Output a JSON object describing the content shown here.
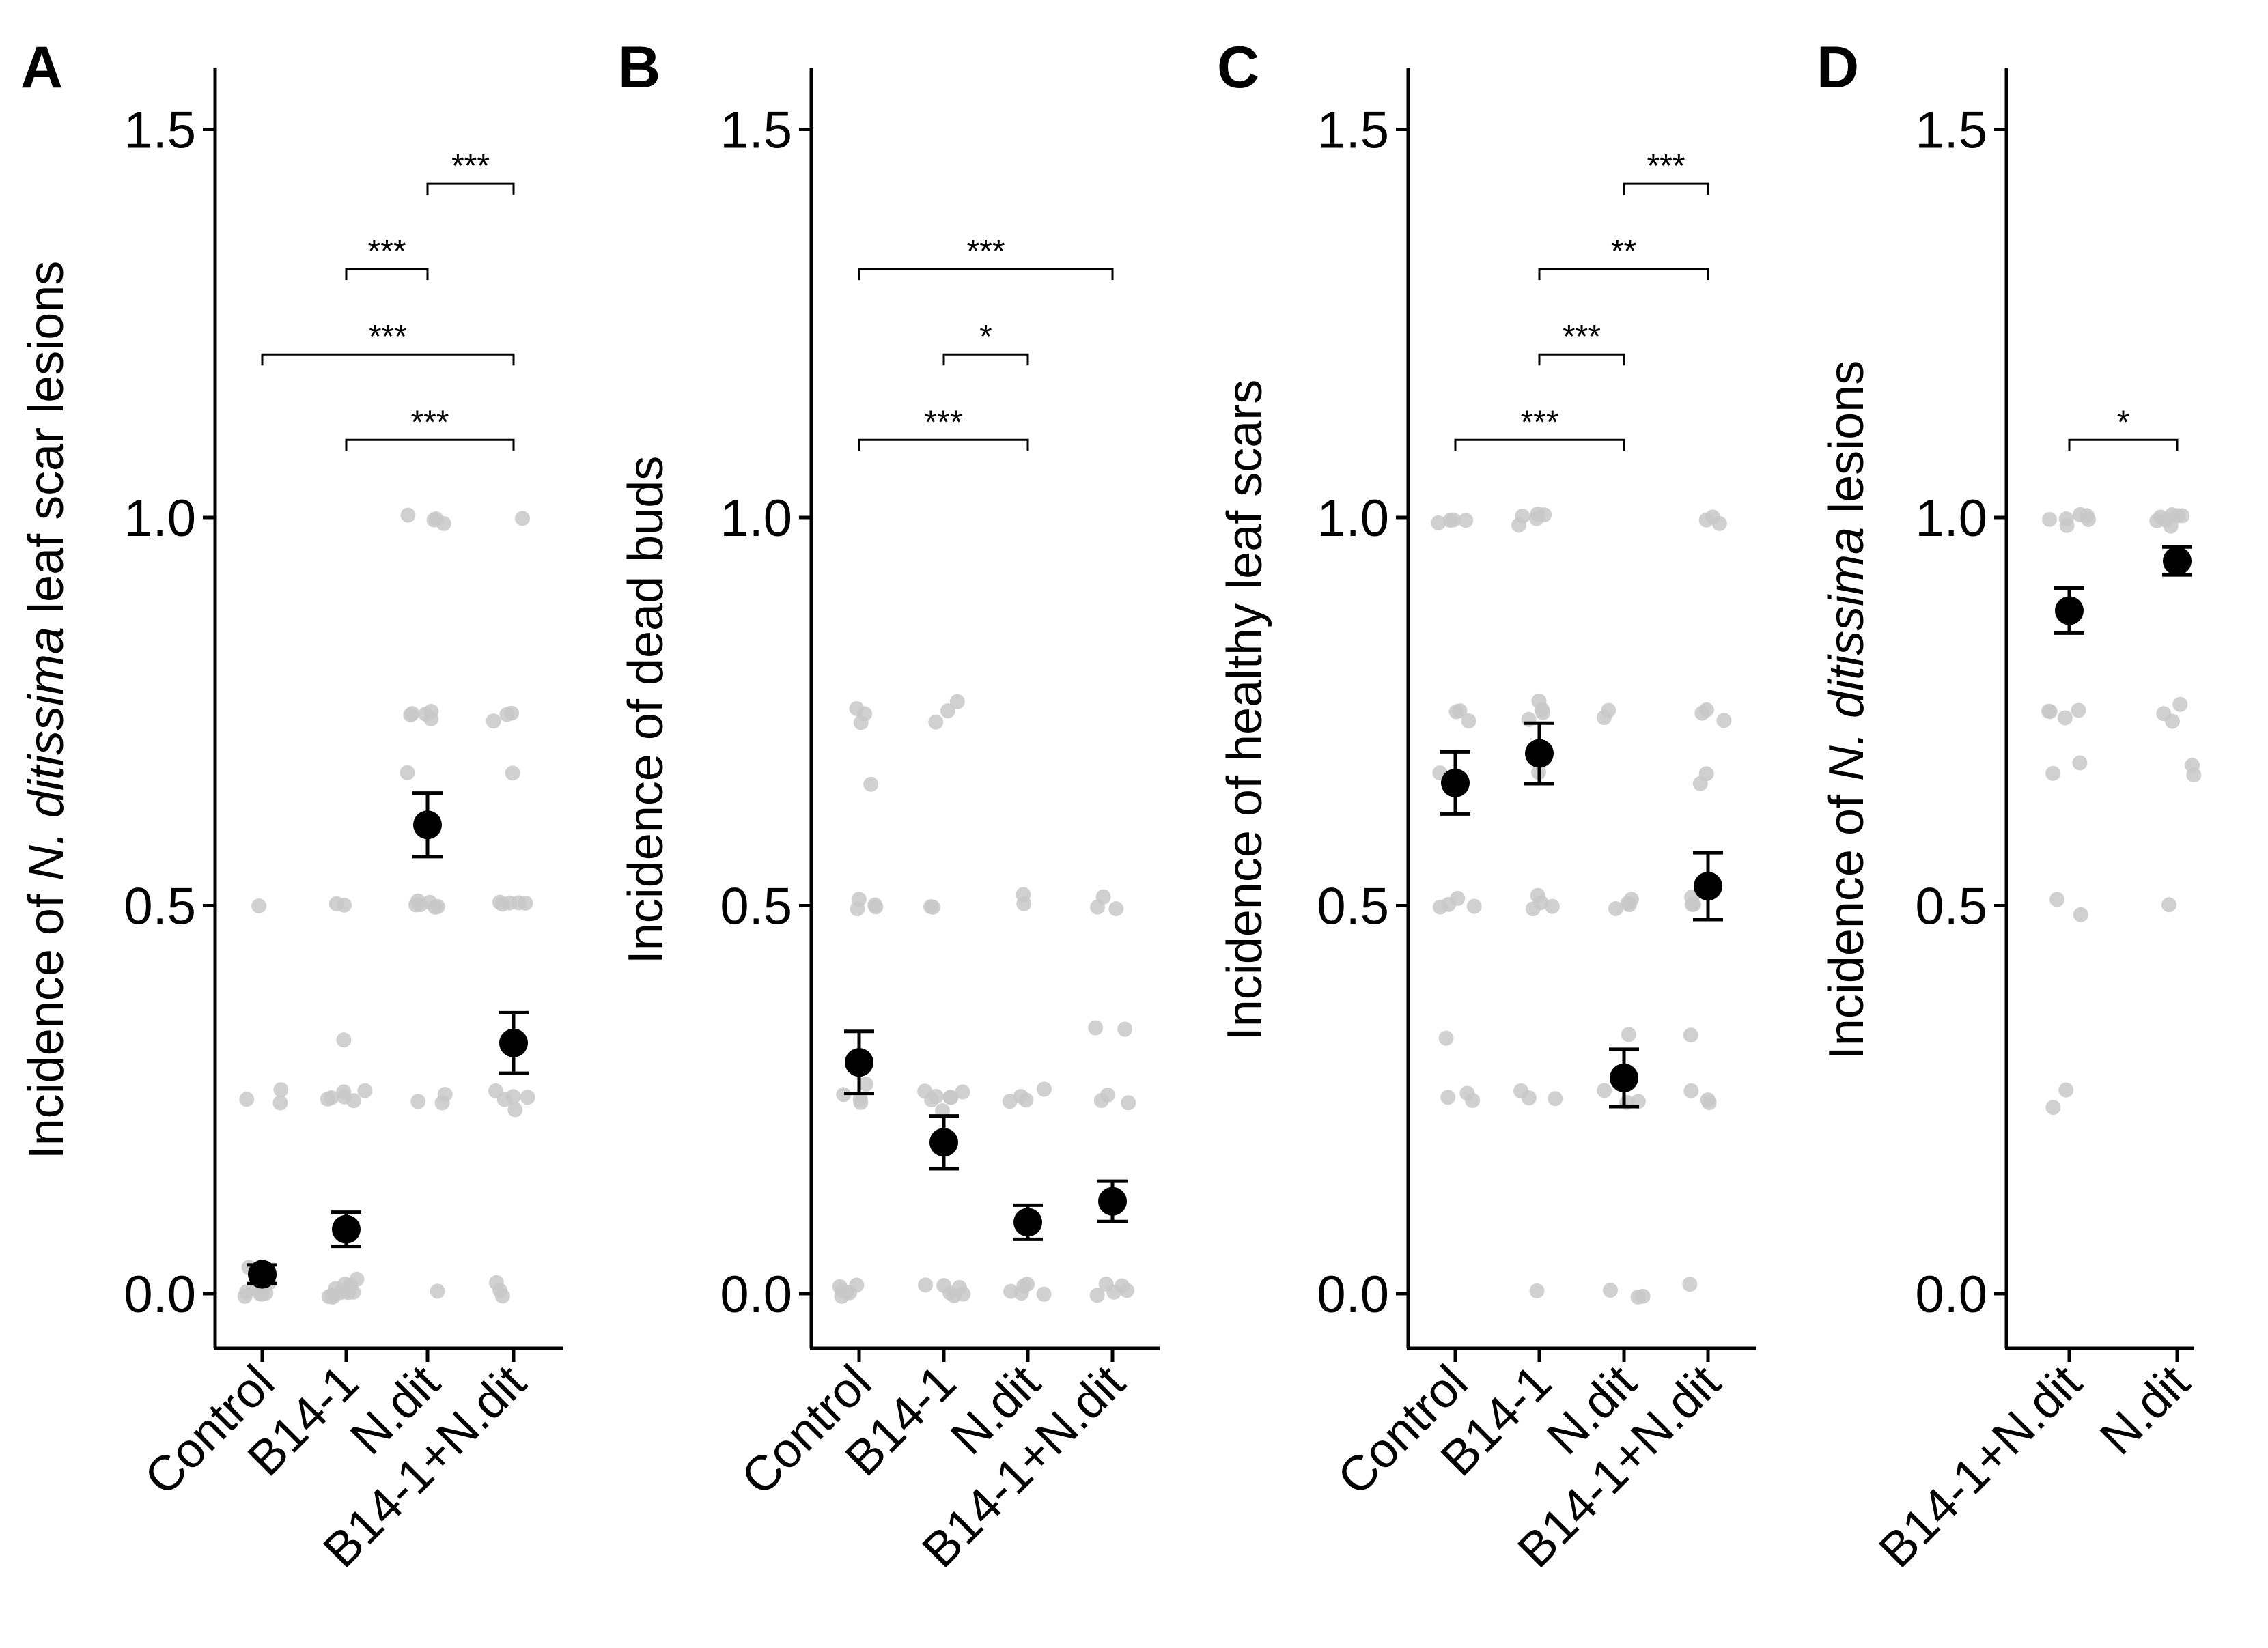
{
  "chart_data": [
    {
      "panel": "A",
      "type": "scatter",
      "ylabel_parts": [
        "Incidence of ",
        "N. ditissima",
        " leaf scar lesions"
      ],
      "ylim": [
        -0.08,
        1.57
      ],
      "yticks": [
        0.0,
        0.5,
        1.0,
        1.5
      ],
      "ytick_labels": [
        "0.0",
        "0.5",
        "1.0",
        "1.5"
      ],
      "categories": [
        "Control",
        "B14-1",
        "N.dit",
        "B14-1+N.dit"
      ],
      "means": [
        0.025,
        0.083,
        0.604,
        0.323
      ],
      "se": [
        0.012,
        0.022,
        0.041,
        0.039
      ],
      "raw_points": [
        [
          0,
          0,
          0,
          0,
          0,
          0.01,
          0.01,
          0.01,
          0.02,
          0.02,
          0.03,
          0.25,
          0.25,
          0.26,
          0.5
        ],
        [
          0,
          0,
          0,
          0,
          0,
          0,
          0,
          0.01,
          0.01,
          0.01,
          0.02,
          0.25,
          0.25,
          0.25,
          0.25,
          0.26,
          0.26,
          0.33,
          0.5,
          0.5
        ],
        [
          0,
          0.25,
          0.25,
          0.26,
          0.5,
          0.5,
          0.5,
          0.5,
          0.5,
          0.51,
          0.67,
          0.74,
          0.75,
          0.75,
          0.75,
          0.75,
          0.99,
          1.0,
          1.0,
          1.0
        ],
        [
          0,
          0,
          0.01,
          0.24,
          0.25,
          0.25,
          0.25,
          0.26,
          0.5,
          0.5,
          0.5,
          0.5,
          0.5,
          0.67,
          0.74,
          0.75,
          0.75,
          1.0
        ]
      ],
      "comparisons": [
        {
          "from": 2,
          "to": 3,
          "y": 1.43,
          "label": "***"
        },
        {
          "from": 1,
          "to": 2,
          "y": 1.32,
          "label": "***"
        },
        {
          "from": 0,
          "to": 3,
          "y": 1.21,
          "label": "***"
        },
        {
          "from": 1,
          "to": 3,
          "y": 1.1,
          "label": "***"
        }
      ]
    },
    {
      "panel": "B",
      "type": "scatter",
      "ylabel_parts": [
        "Incidence of dead buds"
      ],
      "ylim": [
        -0.08,
        1.57
      ],
      "yticks": [
        0.0,
        0.5,
        1.0,
        1.5
      ],
      "ytick_labels": [
        "0.0",
        "0.5",
        "1.0",
        "1.5"
      ],
      "categories": [
        "Control",
        "B14-1",
        "N.dit",
        "B14-1+N.dit"
      ],
      "means": [
        0.298,
        0.195,
        0.092,
        0.119
      ],
      "se": [
        0.04,
        0.034,
        0.022,
        0.026
      ],
      "raw_points": [
        [
          0,
          0,
          0,
          0,
          0.01,
          0.01,
          0.25,
          0.25,
          0.26,
          0.27,
          0.5,
          0.5,
          0.5,
          0.51,
          0.66,
          0.74,
          0.75,
          0.75
        ],
        [
          0,
          0,
          0,
          0.01,
          0.01,
          0.01,
          0.24,
          0.25,
          0.25,
          0.25,
          0.25,
          0.26,
          0.26,
          0.5,
          0.5,
          0.74,
          0.75,
          0.76
        ],
        [
          0,
          0,
          0,
          0.01,
          0.01,
          0.25,
          0.25,
          0.25,
          0.26,
          0.5,
          0.51
        ],
        [
          0,
          0,
          0,
          0.01,
          0.01,
          0.25,
          0.25,
          0.26,
          0.34,
          0.34,
          0.5,
          0.5,
          0.51
        ]
      ],
      "comparisons": [
        {
          "from": 0,
          "to": 3,
          "y": 1.32,
          "label": "***"
        },
        {
          "from": 1,
          "to": 2,
          "y": 1.21,
          "label": "*"
        },
        {
          "from": 0,
          "to": 2,
          "y": 1.1,
          "label": "***"
        }
      ]
    },
    {
      "panel": "C",
      "type": "scatter",
      "ylabel_parts": [
        "Incidence of healthy leaf scars"
      ],
      "ylim": [
        -0.08,
        1.57
      ],
      "yticks": [
        0.0,
        0.5,
        1.0,
        1.5
      ],
      "ytick_labels": [
        "0.0",
        "0.5",
        "1.0",
        "1.5"
      ],
      "categories": [
        "Control",
        "B14-1",
        "N.dit",
        "B14-1+N.dit"
      ],
      "means": [
        0.658,
        0.696,
        0.278,
        0.525
      ],
      "se": [
        0.04,
        0.039,
        0.037,
        0.043
      ],
      "raw_points": [
        [
          0.25,
          0.25,
          0.26,
          0.33,
          0.5,
          0.5,
          0.5,
          0.51,
          0.67,
          0.74,
          0.75,
          0.75,
          0.99,
          1.0,
          1.0,
          1.0
        ],
        [
          0,
          0.25,
          0.25,
          0.26,
          0.5,
          0.5,
          0.5,
          0.51,
          0.67,
          0.74,
          0.75,
          0.75,
          0.76,
          0.99,
          1.0,
          1.0,
          1.0,
          1.0
        ],
        [
          0,
          0,
          0,
          0.25,
          0.25,
          0.26,
          0.33,
          0.5,
          0.5,
          0.5,
          0.51,
          0.74,
          0.75
        ],
        [
          0.01,
          0.25,
          0.25,
          0.26,
          0.33,
          0.5,
          0.5,
          0.51,
          0.66,
          0.67,
          0.74,
          0.75,
          0.75,
          0.99,
          1.0,
          1.0
        ]
      ],
      "comparisons": [
        {
          "from": 2,
          "to": 3,
          "y": 1.43,
          "label": "***"
        },
        {
          "from": 1,
          "to": 3,
          "y": 1.32,
          "label": "**"
        },
        {
          "from": 1,
          "to": 2,
          "y": 1.21,
          "label": "***"
        },
        {
          "from": 0,
          "to": 2,
          "y": 1.1,
          "label": "***"
        }
      ]
    },
    {
      "panel": "D",
      "type": "scatter",
      "ylabel_parts": [
        "Incidence of ",
        "N. ditissima",
        " lesions"
      ],
      "ylim": [
        -0.08,
        1.57
      ],
      "yticks": [
        0.0,
        0.5,
        1.0,
        1.5
      ],
      "ytick_labels": [
        "0.0",
        "0.5",
        "1.0",
        "1.5"
      ],
      "categories": [
        "B14-1+N.dit",
        "N.dit"
      ],
      "means": [
        0.88,
        0.944
      ],
      "se": [
        0.029,
        0.018
      ],
      "raw_points": [
        [
          0.24,
          0.26,
          0.49,
          0.51,
          0.67,
          0.68,
          0.74,
          0.75,
          0.75,
          0.75,
          0.99,
          1.0,
          1.0,
          1.0,
          1.0,
          1.0
        ],
        [
          0.5,
          0.67,
          0.68,
          0.74,
          0.75,
          0.76,
          0.99,
          1.0,
          1.0,
          1.0,
          1.0,
          1.0,
          1.0
        ]
      ],
      "comparisons": [
        {
          "from": 0,
          "to": 1,
          "y": 1.1,
          "label": "*"
        }
      ]
    }
  ]
}
